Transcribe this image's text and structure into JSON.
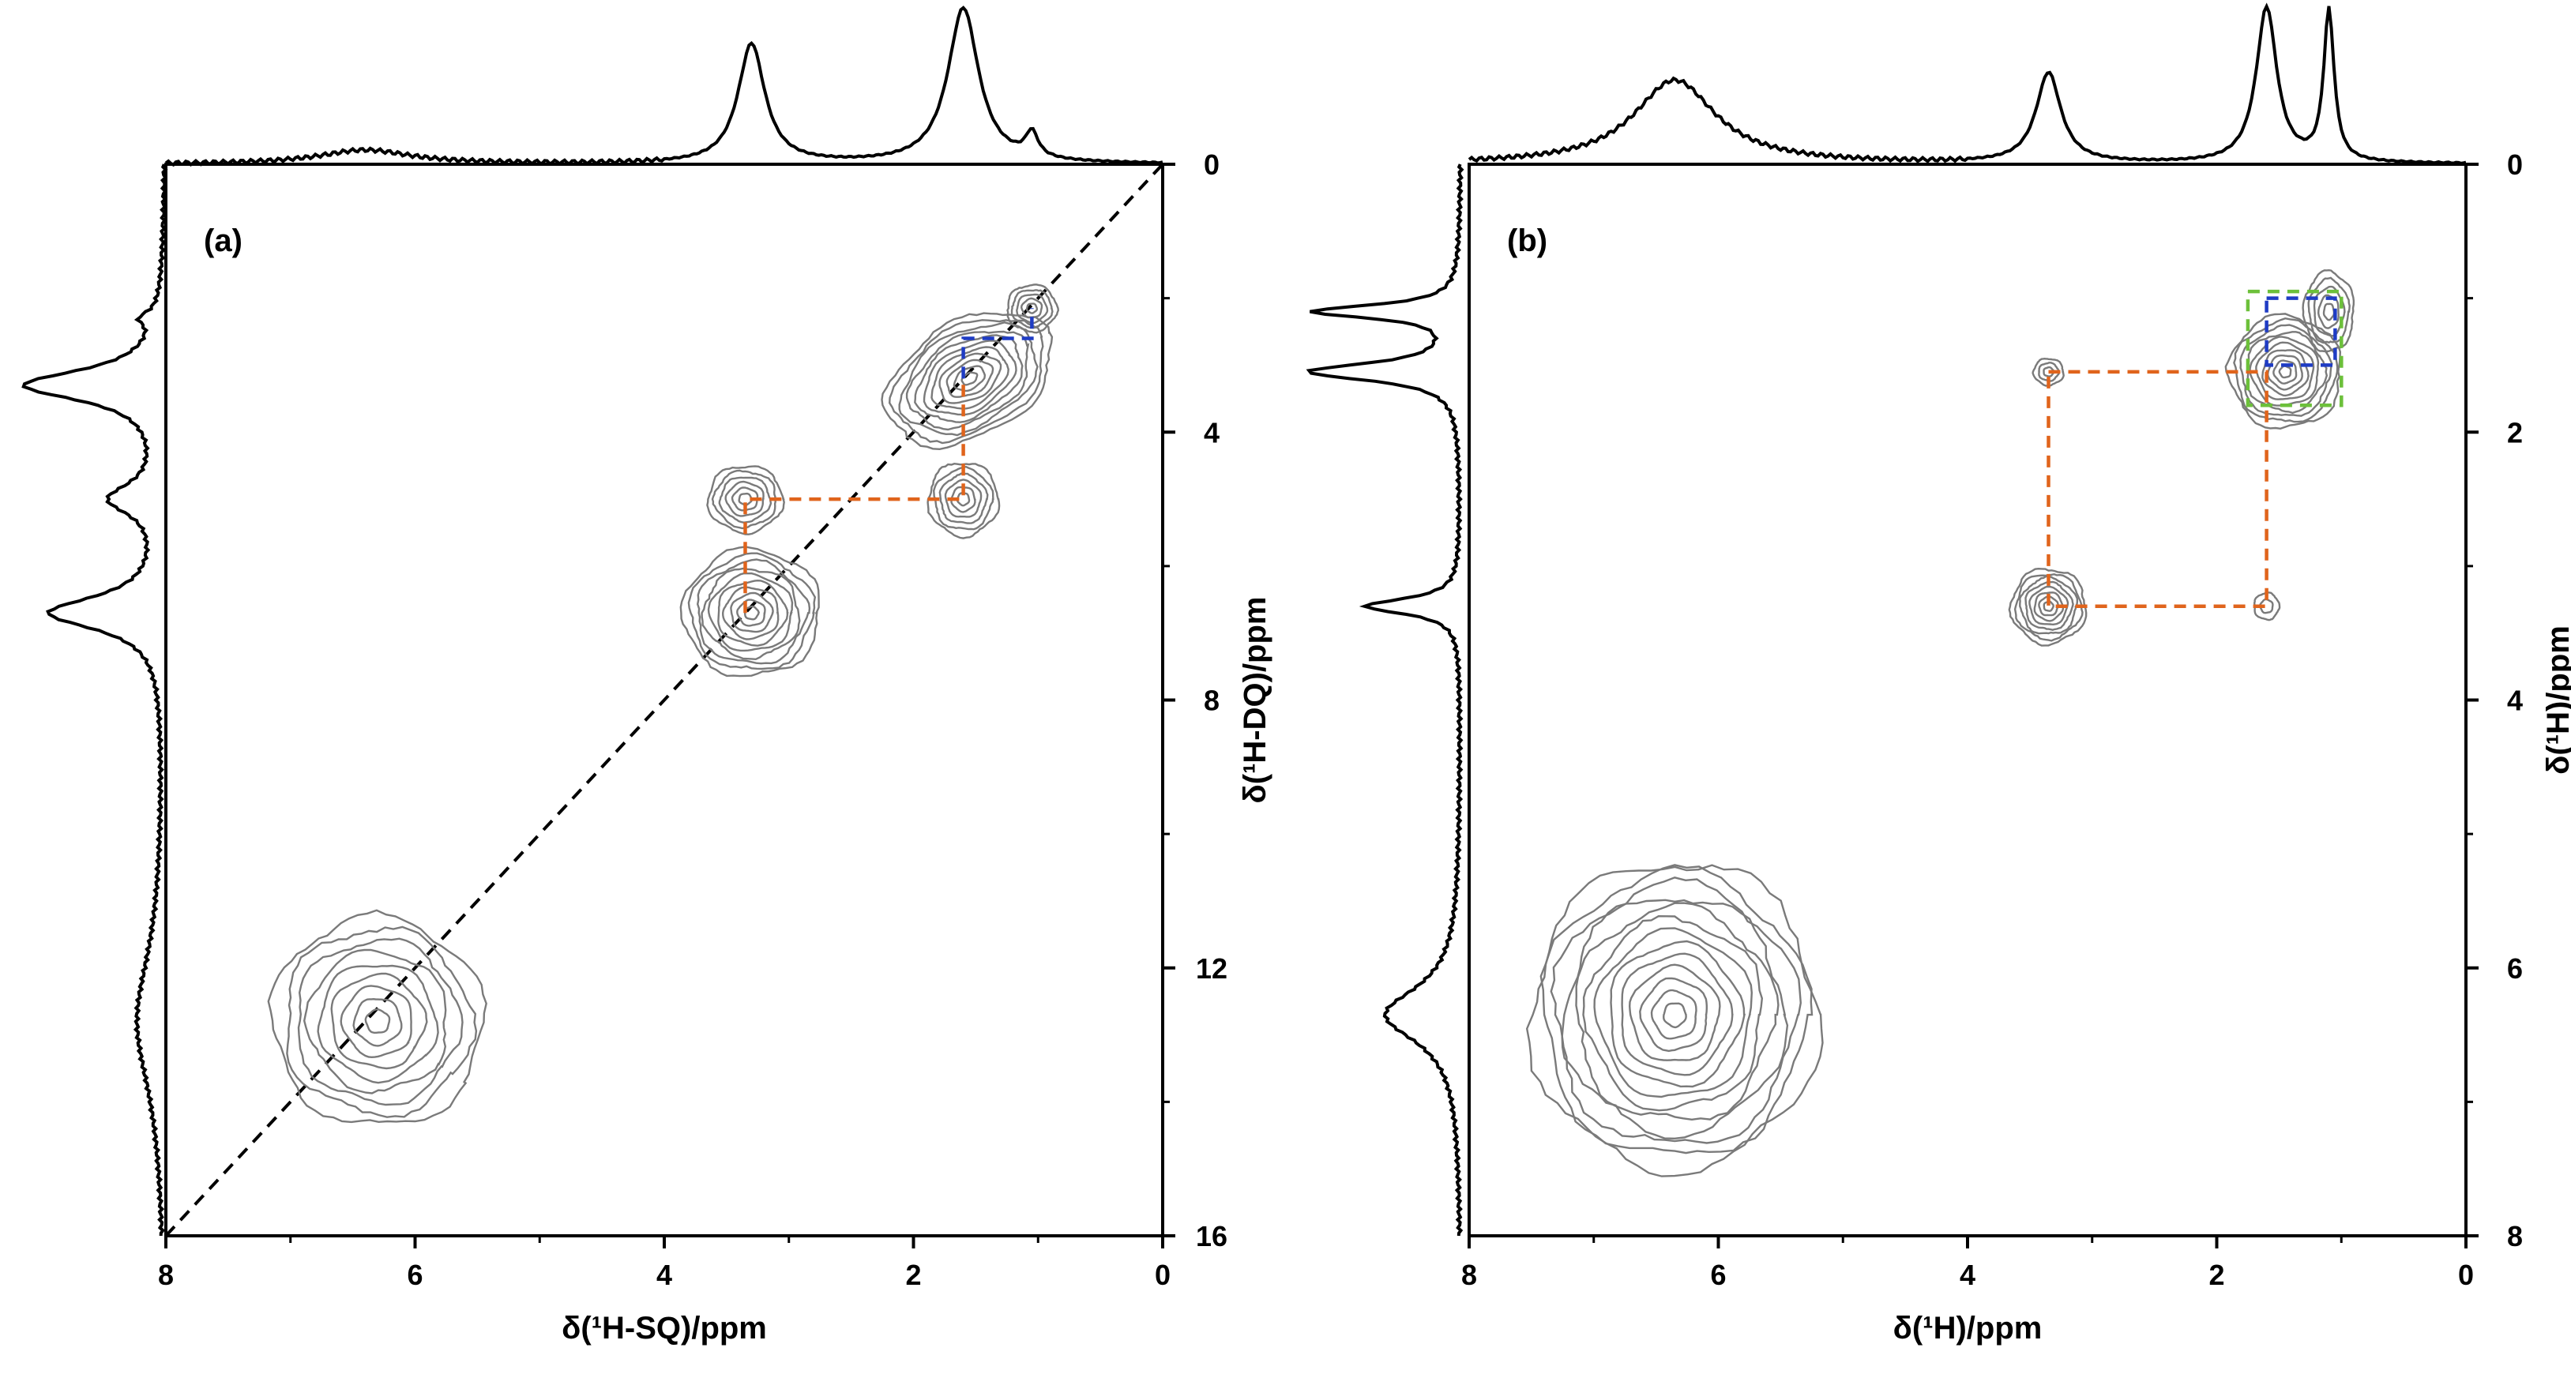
{
  "chart_data": [
    {
      "type": "contour",
      "panel_label": "(a)",
      "xlabel": "δ(¹H-SQ)/ppm",
      "ylabel": "δ(¹H-DQ)/ppm",
      "xlim": [
        8,
        0
      ],
      "ylim": [
        0,
        16
      ],
      "x_ticks": [
        "8",
        "6",
        "4",
        "2",
        "0"
      ],
      "y_ticks": [
        "0",
        "4",
        "8",
        "12",
        "16"
      ],
      "diagonal": true,
      "peaks": [
        {
          "x": 6.3,
          "y": 12.8,
          "rx": 0.85,
          "ry": 1.55,
          "tilt": 35,
          "levels": 9
        },
        {
          "x": 3.3,
          "y": 6.7,
          "rx": 0.55,
          "ry": 0.95,
          "tilt": 0,
          "levels": 10
        },
        {
          "x": 3.35,
          "y": 5.0,
          "rx": 0.3,
          "ry": 0.5,
          "tilt": 0,
          "levels": 6
        },
        {
          "x": 1.6,
          "y": 5.0,
          "rx": 0.28,
          "ry": 0.55,
          "tilt": 0,
          "levels": 6
        },
        {
          "x": 1.55,
          "y": 3.2,
          "rx": 0.72,
          "ry": 0.85,
          "tilt": -30,
          "levels": 11
        },
        {
          "x": 1.05,
          "y": 2.15,
          "rx": 0.2,
          "ry": 0.35,
          "tilt": 0,
          "levels": 5
        }
      ],
      "correlations": [
        {
          "color": "#e0641c",
          "path": [
            [
              3.35,
              6.7
            ],
            [
              3.35,
              5.0
            ],
            [
              1.6,
              5.0
            ],
            [
              1.6,
              3.2
            ]
          ]
        },
        {
          "color": "#1f3cc4",
          "path": [
            [
              1.6,
              3.2
            ],
            [
              1.6,
              2.6
            ],
            [
              1.05,
              2.6
            ],
            [
              1.05,
              2.15
            ]
          ]
        }
      ],
      "projection_top": [
        {
          "pos": 6.4,
          "h": 0.09,
          "w": 0.45
        },
        {
          "pos": 3.3,
          "h": 0.77,
          "w": 0.13
        },
        {
          "pos": 1.6,
          "h": 1.0,
          "w": 0.15
        },
        {
          "pos": 1.05,
          "h": 0.16,
          "w": 0.06
        }
      ],
      "projection_left": [
        {
          "pos": 2.3,
          "h": 0.1,
          "w": 0.12
        },
        {
          "pos": 3.3,
          "h": 0.88,
          "w": 0.28
        },
        {
          "pos": 5.0,
          "h": 0.32,
          "w": 0.28
        },
        {
          "pos": 6.7,
          "h": 0.72,
          "w": 0.3
        },
        {
          "pos": 12.8,
          "h": 0.18,
          "w": 1.3
        }
      ]
    },
    {
      "type": "contour",
      "panel_label": "(b)",
      "xlabel": "δ(¹H)/ppm",
      "ylabel": "δ(¹H)/ppm",
      "xlim": [
        8,
        0
      ],
      "ylim": [
        0,
        8
      ],
      "x_ticks": [
        "8",
        "6",
        "4",
        "2",
        "0"
      ],
      "y_ticks": [
        "0",
        "2",
        "4",
        "6",
        "8"
      ],
      "diagonal": false,
      "peaks": [
        {
          "x": 6.35,
          "y": 6.35,
          "rx": 1.15,
          "ry": 1.15,
          "tilt": 0,
          "levels": 13
        },
        {
          "x": 3.35,
          "y": 3.3,
          "rx": 0.3,
          "ry": 0.28,
          "tilt": 0,
          "levels": 8
        },
        {
          "x": 3.35,
          "y": 1.55,
          "rx": 0.12,
          "ry": 0.1,
          "tilt": 0,
          "levels": 3
        },
        {
          "x": 1.6,
          "y": 3.3,
          "rx": 0.1,
          "ry": 0.1,
          "tilt": 0,
          "levels": 2
        },
        {
          "x": 1.45,
          "y": 1.55,
          "rx": 0.45,
          "ry": 0.42,
          "tilt": -25,
          "levels": 10
        },
        {
          "x": 1.1,
          "y": 1.1,
          "rx": 0.2,
          "ry": 0.3,
          "tilt": 0,
          "levels": 5
        }
      ],
      "correlations": [
        {
          "color": "#e0641c",
          "path": [
            [
              3.35,
              1.55
            ],
            [
              1.6,
              1.55
            ],
            [
              1.6,
              3.3
            ],
            [
              3.35,
              3.3
            ],
            [
              3.35,
              1.55
            ]
          ]
        },
        {
          "color": "#1f3cc4",
          "path": [
            [
              1.6,
              1.0
            ],
            [
              1.05,
              1.0
            ],
            [
              1.05,
              1.5
            ],
            [
              1.6,
              1.5
            ],
            [
              1.6,
              1.0
            ]
          ]
        },
        {
          "color": "#6cc03a",
          "path": [
            [
              1.75,
              0.95
            ],
            [
              1.0,
              0.95
            ],
            [
              1.0,
              1.8
            ],
            [
              1.75,
              1.8
            ],
            [
              1.75,
              0.95
            ]
          ]
        }
      ],
      "projection_top": [
        {
          "pos": 6.35,
          "h": 0.54,
          "w": 0.4
        },
        {
          "pos": 3.35,
          "h": 0.58,
          "w": 0.12
        },
        {
          "pos": 1.6,
          "h": 1.0,
          "w": 0.1
        },
        {
          "pos": 1.1,
          "h": 0.97,
          "w": 0.05
        }
      ],
      "projection_left": [
        {
          "pos": 1.1,
          "h": 0.92,
          "w": 0.06
        },
        {
          "pos": 1.55,
          "h": 0.95,
          "w": 0.08
        },
        {
          "pos": 3.3,
          "h": 0.6,
          "w": 0.07
        },
        {
          "pos": 6.35,
          "h": 0.48,
          "w": 0.25
        }
      ]
    }
  ]
}
